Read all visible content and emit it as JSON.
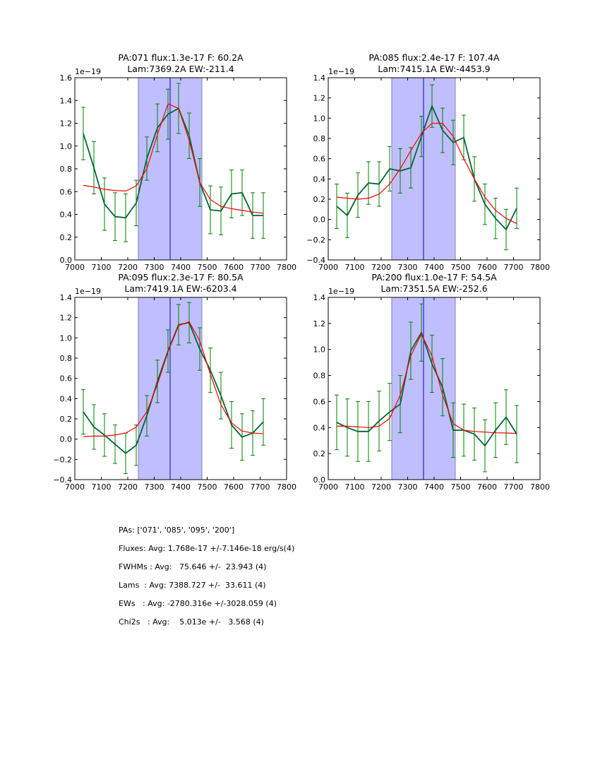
{
  "chart_data": [
    {
      "type": "line",
      "title": [
        "PA:071 flux:1.3e-17 F: 60.2A",
        "Lam:7369.2A EW:-211.4"
      ],
      "offset_label": "1e−19",
      "xlim": [
        7000,
        7800
      ],
      "ylim": [
        0.0,
        1.6
      ],
      "xticks": [
        "7000",
        "7100",
        "7200",
        "7300",
        "7400",
        "7500",
        "7600",
        "7700",
        "7800"
      ],
      "yticks": [
        "0.0",
        "0.2",
        "0.4",
        "0.6",
        "0.8",
        "1.0",
        "1.2",
        "1.4",
        "1.6"
      ],
      "band": [
        7240,
        7480
      ],
      "center_line": 7360,
      "x": [
        7032,
        7072,
        7112,
        7152,
        7192,
        7232,
        7272,
        7312,
        7352,
        7392,
        7432,
        7472,
        7512,
        7552,
        7592,
        7632,
        7672,
        7712
      ],
      "series": [
        {
          "name": "data",
          "color": "#006633",
          "values": [
            1.11,
            0.81,
            0.49,
            0.38,
            0.37,
            0.5,
            0.89,
            1.16,
            1.28,
            1.33,
            1.09,
            0.68,
            0.44,
            0.43,
            0.58,
            0.59,
            0.39,
            0.39
          ],
          "errors": [
            0.23,
            0.23,
            0.23,
            0.21,
            0.21,
            0.2,
            0.19,
            0.21,
            0.22,
            0.22,
            0.2,
            0.21,
            0.21,
            0.21,
            0.21,
            0.2,
            0.2,
            0.2
          ]
        },
        {
          "name": "fit",
          "color": "#ff0000",
          "values": [
            0.655,
            0.64,
            0.62,
            0.61,
            0.605,
            0.65,
            0.8,
            1.1,
            1.37,
            1.33,
            1.05,
            0.68,
            0.53,
            0.47,
            0.45,
            0.435,
            0.42,
            0.41
          ]
        }
      ]
    },
    {
      "type": "line",
      "title": [
        "PA:085 flux:2.4e-17 F: 107.4A",
        "Lam:7415.1A EW:-4453.9"
      ],
      "offset_label": "1e−19",
      "xlim": [
        7000,
        7800
      ],
      "ylim": [
        -0.4,
        1.4
      ],
      "xticks": [
        "7000",
        "7100",
        "7200",
        "7300",
        "7400",
        "7500",
        "7600",
        "7700",
        "7800"
      ],
      "yticks": [
        "−0.4",
        "−0.2",
        "0.0",
        "0.2",
        "0.4",
        "0.6",
        "0.8",
        "1.0",
        "1.2",
        "1.4"
      ],
      "band": [
        7240,
        7480
      ],
      "center_line": 7360,
      "x": [
        7032,
        7072,
        7112,
        7152,
        7192,
        7232,
        7272,
        7312,
        7352,
        7392,
        7432,
        7472,
        7512,
        7552,
        7592,
        7632,
        7672,
        7712
      ],
      "series": [
        {
          "name": "data",
          "color": "#006633",
          "values": [
            0.13,
            0.04,
            0.24,
            0.36,
            0.35,
            0.5,
            0.48,
            0.51,
            0.82,
            1.12,
            0.88,
            0.76,
            0.81,
            0.4,
            0.15,
            0.01,
            -0.1,
            0.11
          ],
          "errors": [
            0.22,
            0.22,
            0.22,
            0.21,
            0.22,
            0.22,
            0.22,
            0.2,
            0.2,
            0.21,
            0.22,
            0.22,
            0.22,
            0.22,
            0.2,
            0.2,
            0.2,
            0.2
          ]
        },
        {
          "name": "fit",
          "color": "#ff0000",
          "values": [
            0.22,
            0.21,
            0.2,
            0.21,
            0.25,
            0.35,
            0.5,
            0.68,
            0.85,
            0.95,
            0.95,
            0.82,
            0.6,
            0.4,
            0.22,
            0.09,
            0.01,
            -0.04
          ]
        }
      ]
    },
    {
      "type": "line",
      "title": [
        "PA:095 flux:2.3e-17 F: 80.5A",
        "Lam:7419.1A EW:-6203.4"
      ],
      "offset_label": "1e−19",
      "xlim": [
        7000,
        7800
      ],
      "ylim": [
        -0.4,
        1.4
      ],
      "xticks": [
        "7000",
        "7100",
        "7200",
        "7300",
        "7400",
        "7500",
        "7600",
        "7700",
        "7800"
      ],
      "yticks": [
        "−0.4",
        "−0.2",
        "0.0",
        "0.2",
        "0.4",
        "0.6",
        "0.8",
        "1.0",
        "1.2",
        "1.4"
      ],
      "band": [
        7240,
        7480
      ],
      "center_line": 7360,
      "x": [
        7032,
        7072,
        7112,
        7152,
        7192,
        7232,
        7272,
        7312,
        7352,
        7392,
        7432,
        7472,
        7512,
        7552,
        7592,
        7632,
        7672,
        7712
      ],
      "series": [
        {
          "name": "data",
          "color": "#006633",
          "values": [
            0.27,
            0.12,
            0.04,
            -0.05,
            -0.14,
            -0.06,
            0.23,
            0.57,
            0.87,
            1.13,
            1.15,
            0.89,
            0.68,
            0.43,
            0.14,
            0.02,
            0.06,
            0.17
          ],
          "errors": [
            0.22,
            0.22,
            0.21,
            0.19,
            0.2,
            0.2,
            0.2,
            0.21,
            0.21,
            0.2,
            0.2,
            0.21,
            0.22,
            0.23,
            0.23,
            0.23,
            0.22,
            0.23
          ]
        },
        {
          "name": "fit",
          "color": "#ff0000",
          "values": [
            0.025,
            0.03,
            0.03,
            0.04,
            0.06,
            0.12,
            0.27,
            0.54,
            0.86,
            1.12,
            1.16,
            0.97,
            0.64,
            0.34,
            0.16,
            0.08,
            0.06,
            0.055
          ]
        }
      ]
    },
    {
      "type": "line",
      "title": [
        "PA:200 flux:1.0e-17 F: 54.5A",
        "Lam:7351.5A EW:-252.6"
      ],
      "offset_label": "1e−19",
      "xlim": [
        7000,
        7800
      ],
      "ylim": [
        0.0,
        1.4
      ],
      "xticks": [
        "7000",
        "7100",
        "7200",
        "7300",
        "7400",
        "7500",
        "7600",
        "7700",
        "7800"
      ],
      "yticks": [
        "0.0",
        "0.2",
        "0.4",
        "0.6",
        "0.8",
        "1.0",
        "1.2",
        "1.4"
      ],
      "band": [
        7240,
        7480
      ],
      "center_line": 7360,
      "x": [
        7032,
        7072,
        7112,
        7152,
        7192,
        7232,
        7272,
        7312,
        7352,
        7392,
        7432,
        7472,
        7512,
        7552,
        7592,
        7632,
        7672,
        7712
      ],
      "series": [
        {
          "name": "data",
          "color": "#006633",
          "values": [
            0.44,
            0.4,
            0.37,
            0.37,
            0.45,
            0.52,
            0.58,
            0.99,
            1.13,
            0.89,
            0.71,
            0.38,
            0.38,
            0.35,
            0.26,
            0.38,
            0.48,
            0.35
          ],
          "errors": [
            0.21,
            0.22,
            0.23,
            0.23,
            0.23,
            0.22,
            0.22,
            0.22,
            0.22,
            0.22,
            0.22,
            0.21,
            0.2,
            0.2,
            0.2,
            0.21,
            0.21,
            0.22
          ]
        },
        {
          "name": "fit",
          "color": "#ff0000",
          "values": [
            0.41,
            0.41,
            0.405,
            0.4,
            0.41,
            0.47,
            0.65,
            0.95,
            1.12,
            0.95,
            0.65,
            0.43,
            0.38,
            0.37,
            0.365,
            0.36,
            0.358,
            0.355
          ]
        }
      ]
    }
  ],
  "colors": {
    "band": "#bfbfff",
    "band_edge": "#7f7fbf",
    "center_line": "#0000cc",
    "errorbar": "#008000"
  },
  "stats": [
    "PAs: ['071', '085', '095', '200']",
    "Fluxes: Avg: 1.768e-17 +/-7.146e-18 erg/s(4)",
    "FWHMs : Avg:   75.646 +/-  23.943 (4)",
    "Lams  : Avg: 7388.727 +/-  33.611 (4)",
    "EWs   : Avg: -2780.316e +/-3028.059 (4)",
    "Chi2s   : Avg:    5.013e +/-   3.568 (4)"
  ]
}
